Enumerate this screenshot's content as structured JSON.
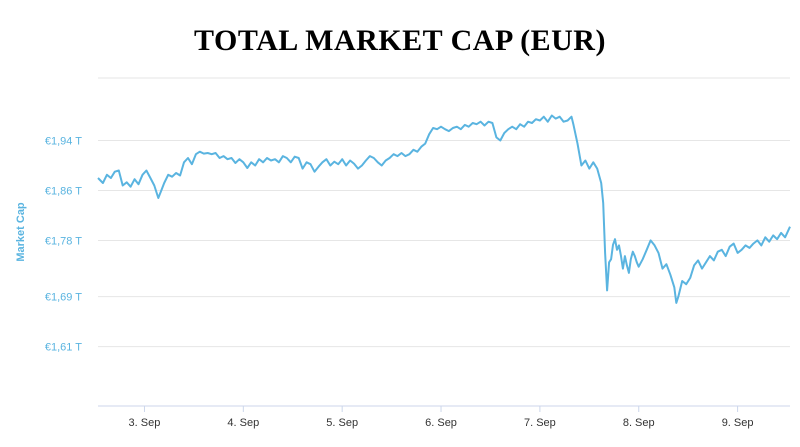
{
  "chart_data": {
    "type": "line",
    "title": "TOTAL MARKET CAP (EUR)",
    "ylabel": "Market Cap",
    "xlabel": "",
    "y_ticks": [
      {
        "value": 1.61,
        "label": "€1,61 T"
      },
      {
        "value": 1.69,
        "label": "€1,69 T"
      },
      {
        "value": 1.78,
        "label": "€1,78 T"
      },
      {
        "value": 1.86,
        "label": "€1,86 T"
      },
      {
        "value": 1.94,
        "label": "€1,94 T"
      }
    ],
    "x_ticks": [
      {
        "value": 3,
        "label": "3. Sep"
      },
      {
        "value": 4,
        "label": "4. Sep"
      },
      {
        "value": 5,
        "label": "5. Sep"
      },
      {
        "value": 6,
        "label": "6. Sep"
      },
      {
        "value": 7,
        "label": "7. Sep"
      },
      {
        "value": 8,
        "label": "8. Sep"
      },
      {
        "value": 9,
        "label": "9. Sep"
      }
    ],
    "xlim": [
      2.53,
      9.53
    ],
    "ylim": [
      1.515,
      2.04
    ],
    "grid": true,
    "color": "#5ab4e0",
    "series": [
      {
        "values": [
          [
            2.53,
            1.88
          ],
          [
            2.58,
            1.872
          ],
          [
            2.62,
            1.885
          ],
          [
            2.66,
            1.88
          ],
          [
            2.7,
            1.89
          ],
          [
            2.74,
            1.892
          ],
          [
            2.78,
            1.868
          ],
          [
            2.82,
            1.873
          ],
          [
            2.86,
            1.866
          ],
          [
            2.9,
            1.878
          ],
          [
            2.94,
            1.87
          ],
          [
            2.98,
            1.885
          ],
          [
            3.02,
            1.892
          ],
          [
            3.06,
            1.88
          ],
          [
            3.1,
            1.868
          ],
          [
            3.14,
            1.848
          ],
          [
            3.17,
            1.86
          ],
          [
            3.2,
            1.872
          ],
          [
            3.24,
            1.885
          ],
          [
            3.28,
            1.882
          ],
          [
            3.32,
            1.888
          ],
          [
            3.36,
            1.884
          ],
          [
            3.4,
            1.905
          ],
          [
            3.44,
            1.912
          ],
          [
            3.48,
            1.902
          ],
          [
            3.52,
            1.918
          ],
          [
            3.56,
            1.922
          ],
          [
            3.6,
            1.919
          ],
          [
            3.64,
            1.92
          ],
          [
            3.68,
            1.918
          ],
          [
            3.72,
            1.92
          ],
          [
            3.76,
            1.912
          ],
          [
            3.8,
            1.915
          ],
          [
            3.84,
            1.91
          ],
          [
            3.88,
            1.912
          ],
          [
            3.92,
            1.904
          ],
          [
            3.96,
            1.91
          ],
          [
            4.0,
            1.905
          ],
          [
            4.04,
            1.896
          ],
          [
            4.08,
            1.905
          ],
          [
            4.12,
            1.9
          ],
          [
            4.16,
            1.91
          ],
          [
            4.2,
            1.905
          ],
          [
            4.24,
            1.912
          ],
          [
            4.28,
            1.908
          ],
          [
            4.32,
            1.91
          ],
          [
            4.36,
            1.905
          ],
          [
            4.4,
            1.915
          ],
          [
            4.44,
            1.912
          ],
          [
            4.48,
            1.905
          ],
          [
            4.52,
            1.914
          ],
          [
            4.56,
            1.912
          ],
          [
            4.6,
            1.895
          ],
          [
            4.64,
            1.905
          ],
          [
            4.68,
            1.902
          ],
          [
            4.72,
            1.89
          ],
          [
            4.76,
            1.898
          ],
          [
            4.8,
            1.905
          ],
          [
            4.84,
            1.91
          ],
          [
            4.88,
            1.9
          ],
          [
            4.92,
            1.906
          ],
          [
            4.96,
            1.902
          ],
          [
            5.0,
            1.91
          ],
          [
            5.04,
            1.9
          ],
          [
            5.08,
            1.908
          ],
          [
            5.12,
            1.903
          ],
          [
            5.16,
            1.895
          ],
          [
            5.2,
            1.9
          ],
          [
            5.24,
            1.908
          ],
          [
            5.28,
            1.915
          ],
          [
            5.32,
            1.912
          ],
          [
            5.36,
            1.905
          ],
          [
            5.4,
            1.9
          ],
          [
            5.44,
            1.908
          ],
          [
            5.48,
            1.912
          ],
          [
            5.52,
            1.918
          ],
          [
            5.56,
            1.915
          ],
          [
            5.6,
            1.92
          ],
          [
            5.64,
            1.915
          ],
          [
            5.68,
            1.918
          ],
          [
            5.72,
            1.925
          ],
          [
            5.76,
            1.922
          ],
          [
            5.8,
            1.93
          ],
          [
            5.84,
            1.935
          ],
          [
            5.88,
            1.95
          ],
          [
            5.92,
            1.96
          ],
          [
            5.96,
            1.958
          ],
          [
            6.0,
            1.962
          ],
          [
            6.04,
            1.958
          ],
          [
            6.08,
            1.955
          ],
          [
            6.12,
            1.96
          ],
          [
            6.16,
            1.962
          ],
          [
            6.2,
            1.958
          ],
          [
            6.24,
            1.965
          ],
          [
            6.28,
            1.962
          ],
          [
            6.32,
            1.968
          ],
          [
            6.36,
            1.966
          ],
          [
            6.4,
            1.97
          ],
          [
            6.44,
            1.964
          ],
          [
            6.48,
            1.97
          ],
          [
            6.52,
            1.968
          ],
          [
            6.56,
            1.945
          ],
          [
            6.6,
            1.94
          ],
          [
            6.64,
            1.952
          ],
          [
            6.68,
            1.958
          ],
          [
            6.72,
            1.962
          ],
          [
            6.76,
            1.958
          ],
          [
            6.8,
            1.966
          ],
          [
            6.84,
            1.962
          ],
          [
            6.88,
            1.97
          ],
          [
            6.92,
            1.968
          ],
          [
            6.96,
            1.974
          ],
          [
            7.0,
            1.972
          ],
          [
            7.04,
            1.978
          ],
          [
            7.08,
            1.97
          ],
          [
            7.12,
            1.98
          ],
          [
            7.16,
            1.975
          ],
          [
            7.2,
            1.978
          ],
          [
            7.24,
            1.97
          ],
          [
            7.28,
            1.972
          ],
          [
            7.32,
            1.978
          ],
          [
            7.34,
            1.965
          ],
          [
            7.38,
            1.935
          ],
          [
            7.42,
            1.9
          ],
          [
            7.46,
            1.908
          ],
          [
            7.5,
            1.895
          ],
          [
            7.54,
            1.905
          ],
          [
            7.58,
            1.895
          ],
          [
            7.62,
            1.872
          ],
          [
            7.64,
            1.84
          ],
          [
            7.66,
            1.76
          ],
          [
            7.68,
            1.7
          ],
          [
            7.7,
            1.745
          ],
          [
            7.72,
            1.75
          ],
          [
            7.74,
            1.773
          ],
          [
            7.76,
            1.782
          ],
          [
            7.78,
            1.765
          ],
          [
            7.8,
            1.772
          ],
          [
            7.82,
            1.755
          ],
          [
            7.84,
            1.735
          ],
          [
            7.86,
            1.755
          ],
          [
            7.88,
            1.74
          ],
          [
            7.9,
            1.728
          ],
          [
            7.92,
            1.75
          ],
          [
            7.94,
            1.762
          ],
          [
            7.96,
            1.755
          ],
          [
            7.98,
            1.745
          ],
          [
            8.0,
            1.738
          ],
          [
            8.04,
            1.75
          ],
          [
            8.08,
            1.765
          ],
          [
            8.12,
            1.78
          ],
          [
            8.16,
            1.772
          ],
          [
            8.2,
            1.76
          ],
          [
            8.24,
            1.735
          ],
          [
            8.28,
            1.742
          ],
          [
            8.32,
            1.725
          ],
          [
            8.36,
            1.705
          ],
          [
            8.38,
            1.68
          ],
          [
            8.4,
            1.69
          ],
          [
            8.44,
            1.715
          ],
          [
            8.48,
            1.71
          ],
          [
            8.52,
            1.72
          ],
          [
            8.56,
            1.74
          ],
          [
            8.6,
            1.748
          ],
          [
            8.64,
            1.735
          ],
          [
            8.68,
            1.745
          ],
          [
            8.72,
            1.755
          ],
          [
            8.76,
            1.748
          ],
          [
            8.8,
            1.762
          ],
          [
            8.84,
            1.765
          ],
          [
            8.88,
            1.755
          ],
          [
            8.92,
            1.77
          ],
          [
            8.96,
            1.775
          ],
          [
            9.0,
            1.76
          ],
          [
            9.04,
            1.765
          ],
          [
            9.08,
            1.772
          ],
          [
            9.12,
            1.768
          ],
          [
            9.16,
            1.775
          ],
          [
            9.2,
            1.78
          ],
          [
            9.24,
            1.772
          ],
          [
            9.28,
            1.785
          ],
          [
            9.32,
            1.778
          ],
          [
            9.36,
            1.788
          ],
          [
            9.4,
            1.782
          ],
          [
            9.44,
            1.792
          ],
          [
            9.48,
            1.785
          ],
          [
            9.51,
            1.795
          ],
          [
            9.53,
            1.802
          ]
        ]
      }
    ]
  }
}
